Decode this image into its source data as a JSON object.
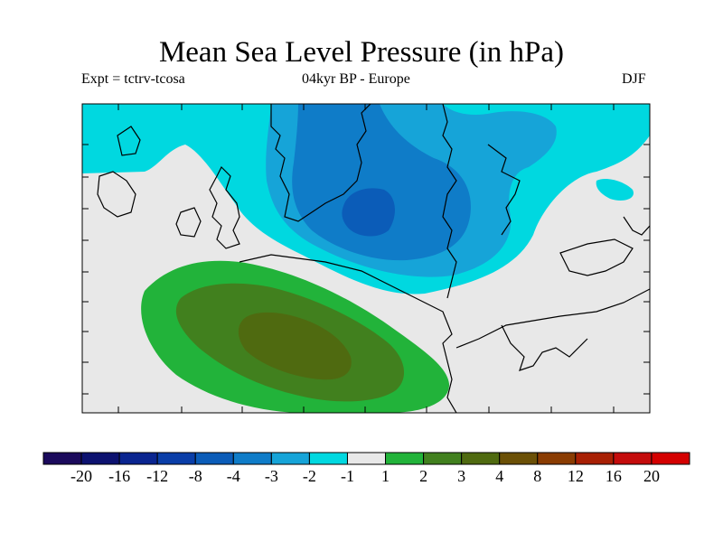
{
  "chart_data": {
    "type": "heatmap",
    "title": "Mean Sea Level Pressure (in hPa)",
    "subtitle_left": "Expt = tctrv-tcosa",
    "subtitle_center": "04kyr BP - Europe",
    "subtitle_right": "DJF",
    "variable": "Mean Sea Level Pressure anomaly",
    "units": "hPa",
    "region": "Europe",
    "season": "DJF",
    "colorbar": {
      "levels": [
        "-20",
        "-16",
        "-12",
        "-8",
        "-4",
        "-3",
        "-2",
        "-1",
        "1",
        "2",
        "3",
        "4",
        "8",
        "12",
        "16",
        "20"
      ],
      "colors": [
        "#1b0a5c",
        "#0d1270",
        "#0a2590",
        "#0a3ea8",
        "#0b5cb8",
        "#0f7cc8",
        "#16a4d8",
        "#00d8e0",
        "#e8e8e8",
        "#22b33a",
        "#41801e",
        "#4f6a10",
        "#6b5006",
        "#8a3c02",
        "#a82004",
        "#c40c0c",
        "#d40000"
      ]
    },
    "features": [
      {
        "name": "negative-anomaly-centre",
        "location": "northern Europe / Scandinavia",
        "min_level": "-8 to -4"
      },
      {
        "name": "positive-anomaly-centre",
        "location": "North Atlantic, west of Iberia",
        "max_level": "3 to 4"
      }
    ]
  },
  "colors": {
    "neutral": "#e8e8e8",
    "c_m1": "#00d8e0",
    "c_m2": "#16a4d8",
    "c_m3": "#0f7cc8",
    "c_m4": "#0b5cb8",
    "c_p1": "#22b33a",
    "c_p2": "#41801e",
    "c_p3": "#4f6a10"
  }
}
